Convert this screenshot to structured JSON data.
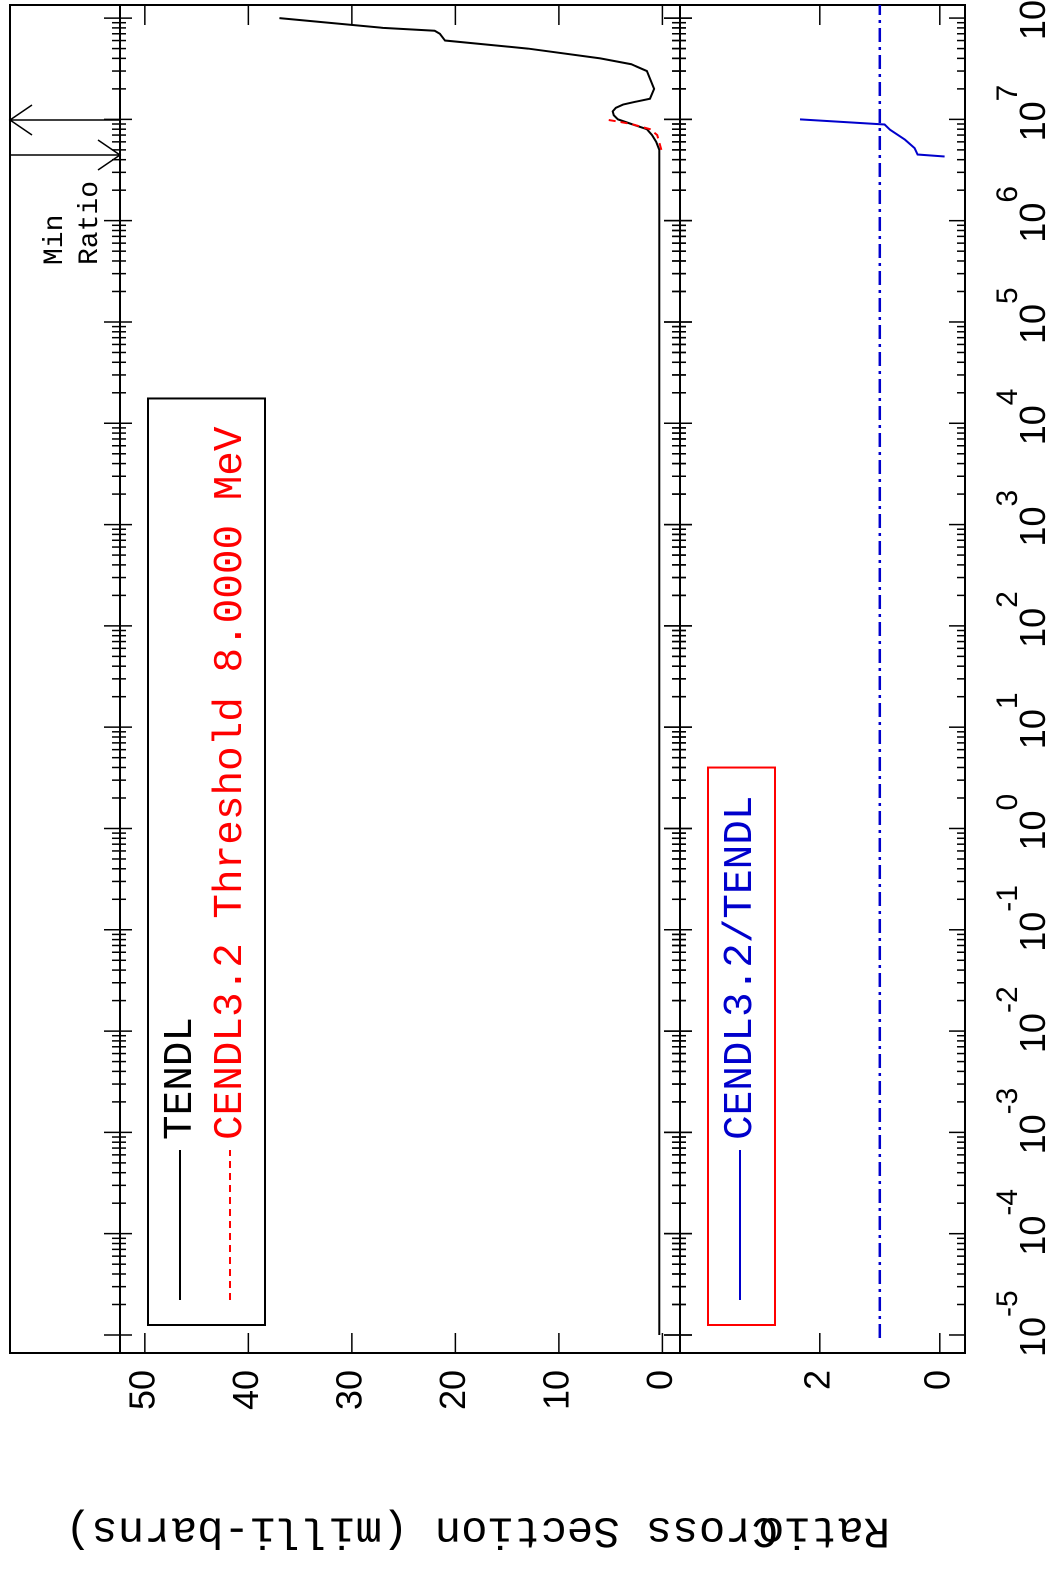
{
  "chart_data": [
    {
      "type": "line",
      "xlog": true,
      "xlim": [
        6.64e-06,
        134600000.0
      ],
      "ylim": [
        -1.7,
        52.4
      ],
      "yticks": [
        0,
        10,
        20,
        30,
        40,
        50
      ],
      "ylabel": "Cross Section (milli-barns)",
      "annotation": [
        "Min",
        "Ratio"
      ],
      "legend": "upper left",
      "legend_frame": "#000000",
      "series": [
        {
          "name": "TENDL",
          "color": "#000000",
          "dash": "solid",
          "x": [
            1e-05,
            1000000.0,
            5000000.0,
            6000000.0,
            7000000.0,
            8000000.0,
            9000000.0,
            10000000.0,
            11000000.0,
            12000000.0,
            13000000.0,
            14000000.0,
            15000000.0,
            16000000.0,
            20000000.0,
            30000000.0,
            35000000.0,
            40000000.0,
            50000000.0,
            60000000.0,
            70000000.0,
            75000000.0,
            80000000.0,
            100000000.0
          ],
          "values": [
            0.3,
            0.3,
            0.3,
            0.6,
            1.0,
            1.5,
            3,
            4.3,
            4.7,
            4.8,
            4.5,
            3.8,
            2.5,
            1.2,
            0.8,
            1.5,
            3,
            6,
            13,
            21,
            21.5,
            22,
            27,
            37
          ]
        },
        {
          "name": "CENDL3.2 Threshold 8.0000 MeV",
          "color": "#ff0000",
          "dash": "dashed",
          "x": [
            5000000.0,
            7000000.0,
            8000000.0,
            9000000.0,
            10000000.0
          ],
          "values": [
            0.1,
            0.5,
            1.2,
            3,
            5.5
          ]
        }
      ]
    },
    {
      "type": "line",
      "xlog": true,
      "xlim": [
        6.64e-06,
        134600000.0
      ],
      "ylim": [
        -0.42,
        4.33
      ],
      "yticks": [
        0,
        2
      ],
      "ylabel": "Ratio",
      "reference": 1,
      "reference_color": "#0000cc",
      "legend": "upper left",
      "legend_frame": "#ff0000",
      "xticks": [
        {
          "value": 1e-05,
          "label": "10",
          "exponent": "-5"
        },
        {
          "value": 0.0001,
          "label": "10",
          "exponent": "-4"
        },
        {
          "value": 0.001,
          "label": "10",
          "exponent": "-3"
        },
        {
          "value": 0.01,
          "label": "10",
          "exponent": "-2"
        },
        {
          "value": 0.1,
          "label": "10",
          "exponent": "-1"
        },
        {
          "value": 1,
          "label": "10",
          "exponent": "0"
        },
        {
          "value": 10,
          "label": "10",
          "exponent": "1"
        },
        {
          "value": 100,
          "label": "10",
          "exponent": "2"
        },
        {
          "value": 1000,
          "label": "10",
          "exponent": "3"
        },
        {
          "value": 10000,
          "label": "10",
          "exponent": "4"
        },
        {
          "value": 100000,
          "label": "10",
          "exponent": "5"
        },
        {
          "value": 1000000,
          "label": "10",
          "exponent": "6"
        },
        {
          "value": 10000000,
          "label": "10",
          "exponent": "7"
        },
        {
          "value": 100000000,
          "label": "10",
          "exponent": "8"
        }
      ],
      "series": [
        {
          "name": "CENDL3.2/TENDL",
          "color": "#0000cc",
          "dash": "solid",
          "x": [
            4300000.0,
            4500000.0,
            5200000.0,
            6300000.0,
            7900000.0,
            8900000.0,
            10000000.0
          ],
          "values": [
            -0.08,
            0.37,
            0.42,
            0.58,
            0.83,
            0.92,
            2.33
          ]
        }
      ]
    }
  ]
}
